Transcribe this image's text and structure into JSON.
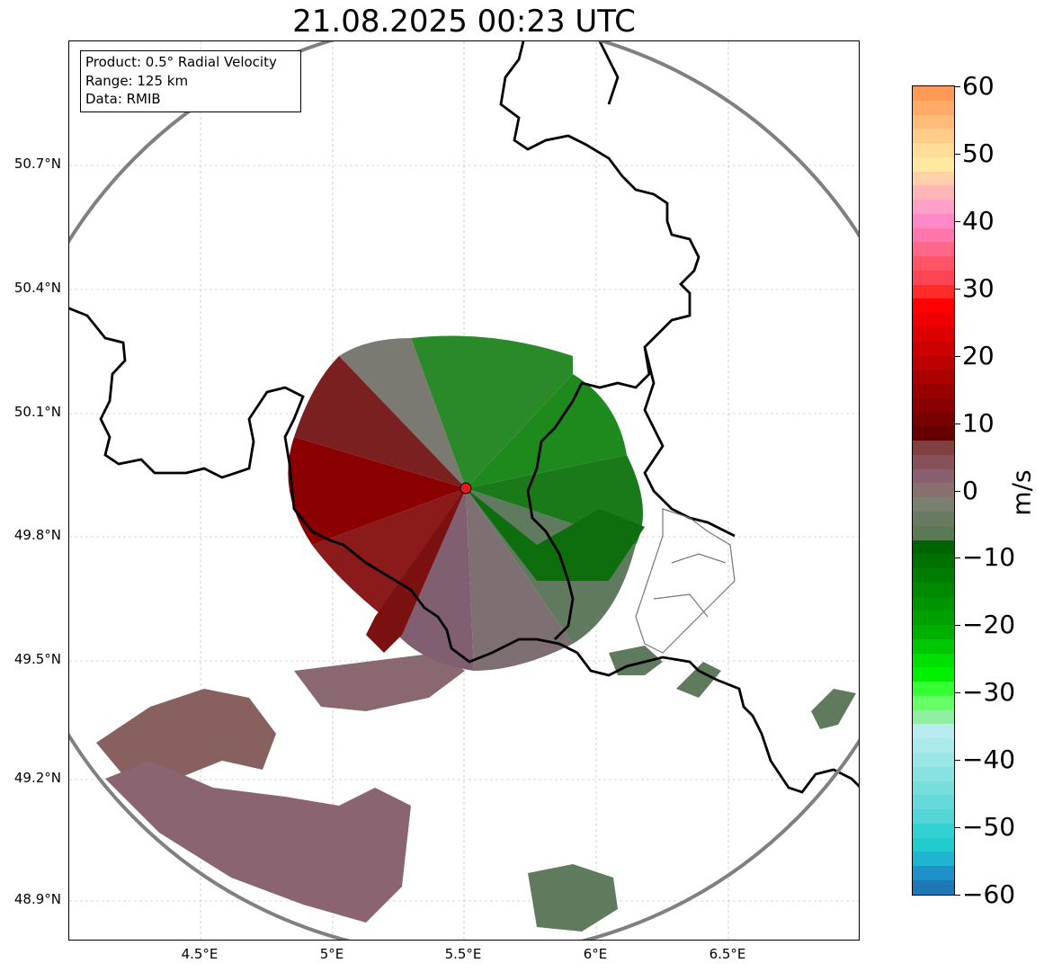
{
  "title": "21.08.2025 00:23 UTC",
  "info": {
    "product": "Product: 0.5° Radial Velocity",
    "range": "Range: 125 km",
    "data_source": "Data: RMIB"
  },
  "lat_labels": [
    "50.7°N",
    "50.4°N",
    "50.1°N",
    "49.8°N",
    "49.5°N",
    "49.2°N",
    "48.9°N"
  ],
  "lon_labels": [
    "4.5°E",
    "5°E",
    "5.5°E",
    "6°E",
    "6.5°E"
  ],
  "colorbar": {
    "unit": "m/s",
    "ticks": [
      "60",
      "50",
      "40",
      "30",
      "20",
      "10",
      "0",
      "−10",
      "−20",
      "−30",
      "−40",
      "−50",
      "−60"
    ],
    "colors": [
      "#ff9955",
      "#ffaa66",
      "#ffbb77",
      "#ffcc88",
      "#ffdd99",
      "#ffe9a0",
      "#ffd0aa",
      "#ffb6b6",
      "#ffa0c8",
      "#ff88c8",
      "#ff77aa",
      "#ff6688",
      "#ff5566",
      "#ff4455",
      "#ff2a2a",
      "#ff0000",
      "#ee0000",
      "#dd0000",
      "#cc0000",
      "#bb0000",
      "#aa0000",
      "#990000",
      "#880000",
      "#770000",
      "#660000",
      "#804040",
      "#885058",
      "#8a6070",
      "#8a7070",
      "#7a8070",
      "#6a7a60",
      "#5a7a55",
      "#006400",
      "#007000",
      "#007c00",
      "#008800",
      "#009400",
      "#00a000",
      "#00b000",
      "#00c800",
      "#00e000",
      "#00f000",
      "#33ff33",
      "#66ff66",
      "#90eea0",
      "#b8ecee",
      "#aaeaea",
      "#99e6e6",
      "#88e2e2",
      "#77dede",
      "#66dada",
      "#55d6d6",
      "#33d2d2",
      "#22cccc",
      "#1fb5d0",
      "#1f90c8",
      "#1f77b4"
    ]
  },
  "radar_site": {
    "lon": 5.505,
    "lat": 49.914
  },
  "range_km": 125,
  "colors": {
    "inbound_green": "#008000",
    "outbound_red": "#8b0000",
    "zero_gray": "#7a7a70",
    "far_mauve": "#886070",
    "range_ring": "#808080"
  }
}
